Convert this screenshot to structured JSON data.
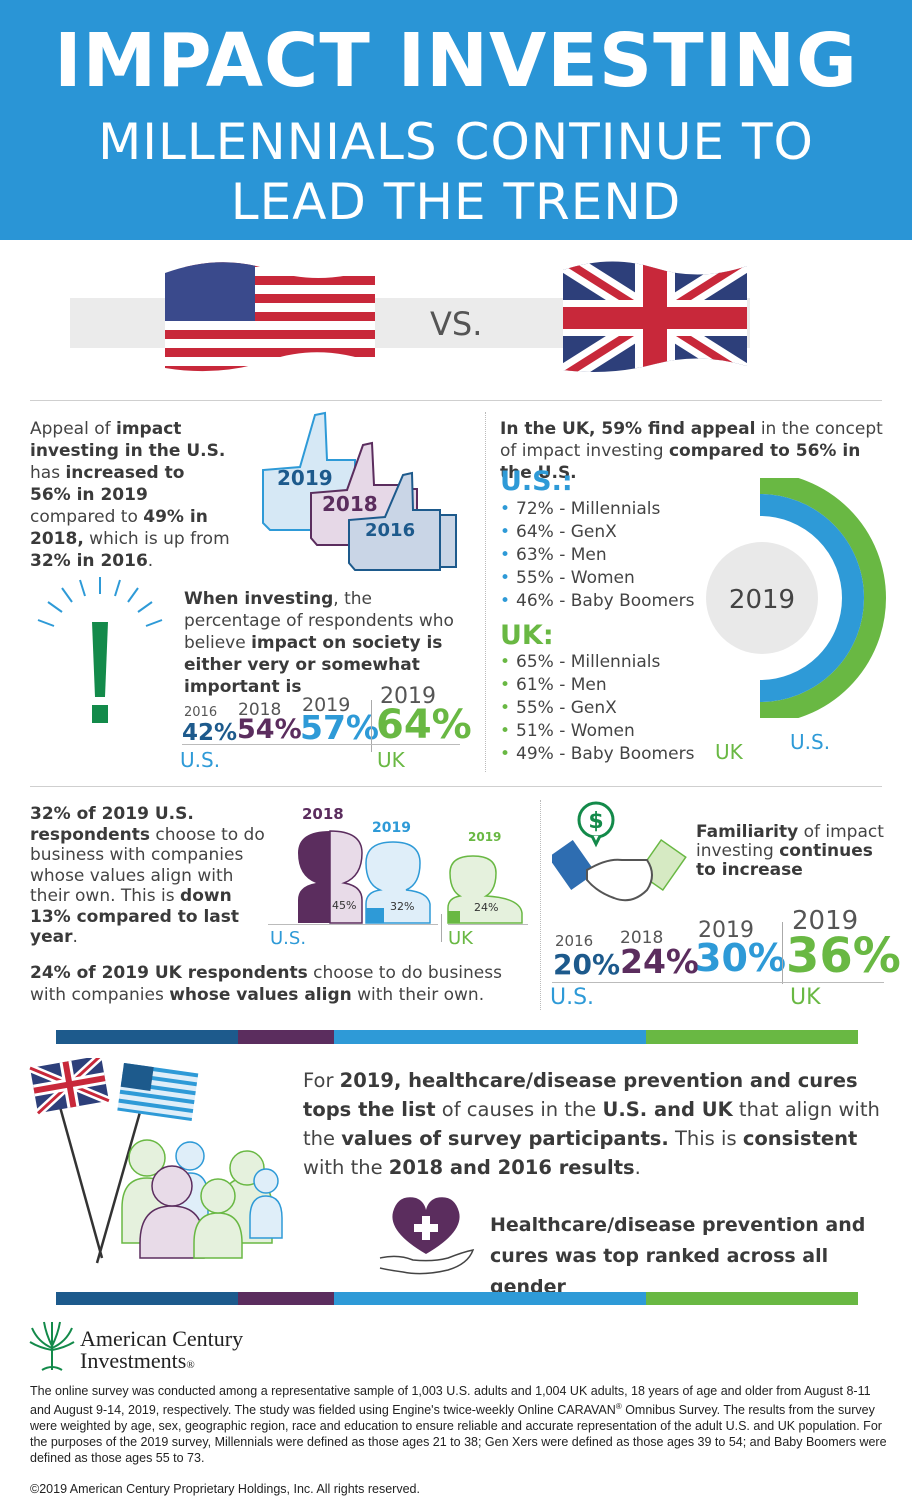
{
  "header": {
    "title": "IMPACT INVESTING",
    "subtitle_line1": "MILLENNIALS CONTINUE TO",
    "subtitle_line2": "LEAD THE TREND"
  },
  "vs": {
    "label": "VS."
  },
  "appeal": {
    "p1": "Appeal of ",
    "b1": "impact investing in the U.S.",
    "p2": " has ",
    "b2": "increased to 56% in 2019",
    "p3": " compared to ",
    "b3": "49% in 2018,",
    "p4": " which is up from ",
    "b4": "32% in 2016",
    "p5": ".",
    "thumbs": [
      "2019",
      "2018",
      "2016"
    ]
  },
  "uk_appeal": {
    "b1": "In the UK, 59% find appeal",
    "p1": " in the concept of impact investing ",
    "b2": "compared to 56% in the U.S.",
    "us_title": "U.S.:",
    "us_items": [
      "72% - Millennials",
      "64% - GenX",
      "63% - Men",
      "55% - Women",
      "46% - Baby Boomers"
    ],
    "uk_title": "UK:",
    "uk_items": [
      "65% - Millennials",
      "61% - Men",
      "55% - GenX",
      "51% - Women",
      "49% - Baby Boomers"
    ],
    "donut_year": "2019",
    "donut_uk": "UK",
    "donut_us": "U.S.",
    "donut_uk_value": 59,
    "donut_us_value": 56,
    "colors": {
      "uk": "#69b843",
      "us": "#2e9ad7"
    }
  },
  "importance": {
    "b1": "When investing",
    "p1": ", the percentage of respondents who believe ",
    "b2": "impact on society is either very or somewhat important is",
    "years": [
      "2016",
      "2018",
      "2019",
      "2019"
    ],
    "values": [
      "42%",
      "54%",
      "57%",
      "64%"
    ],
    "us_label": "U.S.",
    "uk_label": "UK"
  },
  "values_align": {
    "b1": "32% of 2019 U.S. respondents",
    "p1": " choose to do business with companies whose values align with their own. This is ",
    "b2": "down 13% compared to last year",
    "p2": ".",
    "heads": [
      {
        "year": "2018",
        "value": "45%"
      },
      {
        "year": "2019",
        "value": "32%"
      },
      {
        "year": "2019",
        "value": "24%"
      }
    ],
    "us_label": "U.S.",
    "uk_label": "UK",
    "uk_b": "24% of 2019 UK respondents",
    "uk_p1": " choose to do business with companies ",
    "uk_b2": "whose values align",
    "uk_p2": " with their own."
  },
  "familiarity": {
    "b1": "Familiarity",
    "p1": " of impact investing ",
    "b2": "continues to increase",
    "icon_symbol": "$",
    "years": [
      "2016",
      "2018",
      "2019",
      "2019"
    ],
    "values": [
      "20%",
      "24%",
      "30%",
      "36%"
    ],
    "us_label": "U.S.",
    "uk_label": "UK"
  },
  "healthcare": {
    "p1": "For ",
    "b1": "2019, healthcare/disease prevention and cures tops the list",
    "p2": " of causes in the ",
    "b2": "U.S. and UK",
    "p3": " that align with the ",
    "b3": "values of survey participants.",
    "p4": " This is ",
    "b4": "consistent",
    "p5": " with the ",
    "b5": "2018 and 2016 results",
    "p6": ".",
    "gender_text": "Healthcare/disease prevention and cures was top ranked across all gender"
  },
  "footer": {
    "logo_line1": "American Century",
    "logo_line2": "Investments",
    "reg": "®",
    "methodology_1": "The online survey was conducted among a representative sample of 1,003 U.S. adults and 1,004 UK adults, 18 years of age and older from August 8-11 and August 9-14, 2019, respectively. The study was fielded using Engine's twice-weekly Online CARAVAN",
    "methodology_2": " Omnibus Survey. The results from the survey were weighted by age, sex, geographic region, race and education to ensure reliable and accurate representation of the adult U.S. and UK population. For the purposes of the 2019 survey, Millennials were defined as those ages 21 to 38; Gen Xers were defined as those ages 39 to 54; and Baby Boomers were defined as those ages 55 to 73.",
    "copyright": "©2019 American Century Proprietary Holdings, Inc. All rights reserved."
  },
  "palette": {
    "dark_blue": "#1d5a8c",
    "purple": "#5b2d5e",
    "light_blue": "#2e9ad7",
    "green": "#69b843",
    "header": "#2a95d6"
  }
}
